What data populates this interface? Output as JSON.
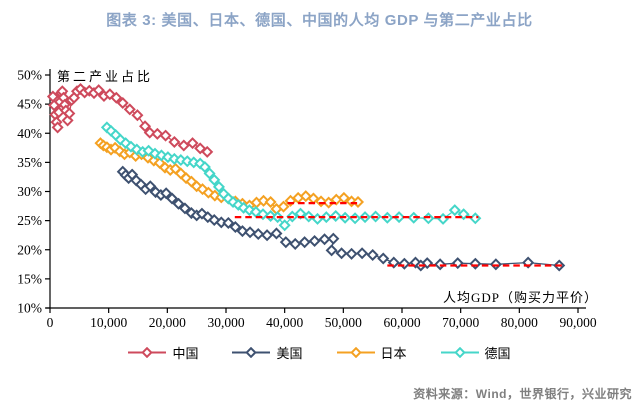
{
  "title": "图表 3: 美国、日本、德国、中国的人均 GDP 与第二产业占比",
  "source_note": "资料来源：Wind，世界银行，兴业研究",
  "colors": {
    "title": "#8CA4C6",
    "source": "#7F7F7F",
    "axis": "#000000",
    "reference_line": "#FF0000"
  },
  "chart_data": {
    "type": "scatter",
    "title": "图表 3: 美国、日本、德国、中国的人均 GDP 与第二产业占比",
    "xlabel": "人均GDP（购买力平价）",
    "ylabel": "第二产业占比",
    "xlim": [
      0,
      90000
    ],
    "ylim_percent": [
      10,
      50
    ],
    "grid": false,
    "legend_position": "bottom",
    "x_ticks": [
      {
        "v": 0,
        "label": "0"
      },
      {
        "v": 10000,
        "label": "10,000"
      },
      {
        "v": 20000,
        "label": "20,000"
      },
      {
        "v": 30000,
        "label": "30,000"
      },
      {
        "v": 40000,
        "label": "40,000"
      },
      {
        "v": 50000,
        "label": "50,000"
      },
      {
        "v": 60000,
        "label": "60,000"
      },
      {
        "v": 70000,
        "label": "70,000"
      },
      {
        "v": 80000,
        "label": "80,000"
      },
      {
        "v": 90000,
        "label": "90,000"
      }
    ],
    "y_ticks": [
      {
        "v": 10,
        "label": "10%"
      },
      {
        "v": 15,
        "label": "15%"
      },
      {
        "v": 20,
        "label": "20%"
      },
      {
        "v": 25,
        "label": "25%"
      },
      {
        "v": 30,
        "label": "30%"
      },
      {
        "v": 35,
        "label": "35%"
      },
      {
        "v": 40,
        "label": "40%"
      },
      {
        "v": 45,
        "label": "45%"
      },
      {
        "v": 50,
        "label": "50%"
      }
    ],
    "series": [
      {
        "id": "usa",
        "name": "美国",
        "color": "#3E5170",
        "points": [
          [
            12400,
            33.4
          ],
          [
            12900,
            32.8
          ],
          [
            13400,
            32.3
          ],
          [
            14000,
            32.9
          ],
          [
            14700,
            31.9
          ],
          [
            15500,
            31.2
          ],
          [
            16300,
            30.4
          ],
          [
            17100,
            30.9
          ],
          [
            18000,
            29.9
          ],
          [
            18900,
            29.4
          ],
          [
            19800,
            29.7
          ],
          [
            20800,
            28.8
          ],
          [
            21900,
            27.9
          ],
          [
            23000,
            27.1
          ],
          [
            24100,
            26.3
          ],
          [
            25000,
            25.9
          ],
          [
            25900,
            26.2
          ],
          [
            26900,
            25.6
          ],
          [
            28000,
            25.1
          ],
          [
            29200,
            24.7
          ],
          [
            30400,
            24.6
          ],
          [
            31600,
            23.9
          ],
          [
            32800,
            23.2
          ],
          [
            34100,
            23.0
          ],
          [
            35500,
            22.7
          ],
          [
            37000,
            22.5
          ],
          [
            38600,
            22.8
          ],
          [
            40200,
            21.3
          ],
          [
            41800,
            21.0
          ],
          [
            43400,
            21.3
          ],
          [
            45100,
            21.5
          ],
          [
            46800,
            21.8
          ],
          [
            48300,
            21.9
          ],
          [
            48000,
            19.9
          ],
          [
            49700,
            19.4
          ],
          [
            51400,
            19.3
          ],
          [
            53200,
            19.4
          ],
          [
            55000,
            19.1
          ],
          [
            56800,
            18.5
          ],
          [
            58600,
            17.8
          ],
          [
            60400,
            17.6
          ],
          [
            62300,
            17.8
          ],
          [
            64300,
            17.7
          ],
          [
            63200,
            17.3
          ],
          [
            66500,
            17.5
          ],
          [
            69500,
            17.7
          ],
          [
            72500,
            17.6
          ],
          [
            76000,
            17.5
          ],
          [
            81500,
            17.8
          ],
          [
            86800,
            17.3
          ]
        ]
      },
      {
        "id": "japan",
        "name": "日本",
        "color": "#F4A122",
        "points": [
          [
            8600,
            38.3
          ],
          [
            9100,
            37.9
          ],
          [
            9700,
            37.6
          ],
          [
            10400,
            37.2
          ],
          [
            11100,
            37.5
          ],
          [
            11900,
            36.9
          ],
          [
            12700,
            36.4
          ],
          [
            13600,
            36.7
          ],
          [
            14600,
            36.1
          ],
          [
            15600,
            36.4
          ],
          [
            16700,
            35.8
          ],
          [
            17700,
            35.3
          ],
          [
            18700,
            34.9
          ],
          [
            19600,
            34.1
          ],
          [
            20500,
            33.7
          ],
          [
            21400,
            33.9
          ],
          [
            22300,
            33.1
          ],
          [
            23200,
            32.3
          ],
          [
            24100,
            31.7
          ],
          [
            25000,
            30.9
          ],
          [
            26000,
            30.4
          ],
          [
            27000,
            29.8
          ],
          [
            28100,
            29.3
          ],
          [
            29200,
            29.0
          ],
          [
            30400,
            28.8
          ],
          [
            31600,
            28.3
          ],
          [
            32800,
            27.9
          ],
          [
            34000,
            27.6
          ],
          [
            35200,
            28.1
          ],
          [
            36400,
            28.4
          ],
          [
            37600,
            28.2
          ],
          [
            38600,
            27.0
          ],
          [
            39800,
            27.4
          ],
          [
            41000,
            28.4
          ],
          [
            42300,
            28.9
          ],
          [
            43600,
            29.2
          ],
          [
            44900,
            28.8
          ],
          [
            46200,
            28.3
          ],
          [
            47500,
            28.1
          ],
          [
            48800,
            28.6
          ],
          [
            50100,
            28.9
          ],
          [
            51400,
            28.3
          ],
          [
            52500,
            28.2
          ]
        ]
      },
      {
        "id": "germany",
        "name": "德国",
        "color": "#45D6C9",
        "points": [
          [
            9700,
            41.0
          ],
          [
            10400,
            40.4
          ],
          [
            11200,
            39.7
          ],
          [
            12000,
            38.9
          ],
          [
            12900,
            38.3
          ],
          [
            13800,
            37.7
          ],
          [
            14800,
            37.2
          ],
          [
            15800,
            36.8
          ],
          [
            16800,
            37.0
          ],
          [
            17900,
            36.5
          ],
          [
            19000,
            36.2
          ],
          [
            20100,
            35.9
          ],
          [
            21200,
            35.6
          ],
          [
            22300,
            35.4
          ],
          [
            23400,
            35.2
          ],
          [
            24500,
            35.0
          ],
          [
            25600,
            34.8
          ],
          [
            26400,
            34.2
          ],
          [
            27200,
            33.1
          ],
          [
            28000,
            32.0
          ],
          [
            28800,
            30.8
          ],
          [
            29600,
            29.6
          ],
          [
            30400,
            28.8
          ],
          [
            31200,
            28.2
          ],
          [
            32100,
            27.7
          ],
          [
            33000,
            27.2
          ],
          [
            34000,
            26.8
          ],
          [
            35100,
            26.5
          ],
          [
            36300,
            26.1
          ],
          [
            37600,
            25.8
          ],
          [
            38800,
            25.6
          ],
          [
            40000,
            24.2
          ],
          [
            41300,
            25.7
          ],
          [
            42700,
            26.2
          ],
          [
            44100,
            25.7
          ],
          [
            45600,
            25.3
          ],
          [
            47100,
            25.6
          ],
          [
            48700,
            25.8
          ],
          [
            50300,
            25.5
          ],
          [
            52000,
            25.4
          ],
          [
            53700,
            25.6
          ],
          [
            55500,
            25.7
          ],
          [
            57500,
            25.5
          ],
          [
            59500,
            25.6
          ],
          [
            62000,
            25.5
          ],
          [
            64500,
            25.4
          ],
          [
            67000,
            25.3
          ],
          [
            69000,
            26.8
          ],
          [
            70500,
            26.1
          ],
          [
            72500,
            25.4
          ]
        ]
      },
      {
        "id": "china",
        "name": "中国",
        "color": "#CE4A5C",
        "points": [
          [
            500,
            46.3
          ],
          [
            700,
            44.8
          ],
          [
            900,
            43.2
          ],
          [
            1100,
            41.9
          ],
          [
            1300,
            41.0
          ],
          [
            1500,
            43.6
          ],
          [
            1700,
            45.4
          ],
          [
            1900,
            46.9
          ],
          [
            2100,
            47.2
          ],
          [
            2300,
            46.1
          ],
          [
            2500,
            44.9
          ],
          [
            2700,
            43.9
          ],
          [
            3000,
            42.2
          ],
          [
            3300,
            43.4
          ],
          [
            3700,
            45.7
          ],
          [
            4100,
            46.1
          ],
          [
            4600,
            47.2
          ],
          [
            5200,
            47.6
          ],
          [
            5900,
            47.0
          ],
          [
            6700,
            47.3
          ],
          [
            7500,
            46.9
          ],
          [
            8300,
            47.4
          ],
          [
            9200,
            46.4
          ],
          [
            10200,
            46.7
          ],
          [
            11300,
            46.1
          ],
          [
            12400,
            45.2
          ],
          [
            13600,
            44.1
          ],
          [
            14900,
            43.1
          ],
          [
            16200,
            41.2
          ],
          [
            17000,
            40.1
          ],
          [
            18300,
            39.9
          ],
          [
            19700,
            39.6
          ],
          [
            21200,
            38.5
          ],
          [
            22800,
            37.9
          ],
          [
            24300,
            38.3
          ],
          [
            25600,
            37.4
          ],
          [
            26800,
            36.8
          ]
        ]
      }
    ],
    "legend_order": [
      "中国",
      "美国",
      "日本",
      "德国"
    ],
    "reference_lines": [
      {
        "for_series": "japan",
        "value_percent": 28.0,
        "x_start": 40500,
        "x_end": 52800,
        "color": "#FF0000",
        "style": "dashed"
      },
      {
        "for_series": "germany",
        "value_percent": 25.6,
        "x_start": 31500,
        "x_end": 73000,
        "color": "#FF0000",
        "style": "dashed"
      },
      {
        "for_series": "usa",
        "value_percent": 17.3,
        "x_start": 57500,
        "x_end": 87500,
        "color": "#FF0000",
        "style": "dashed"
      }
    ]
  }
}
